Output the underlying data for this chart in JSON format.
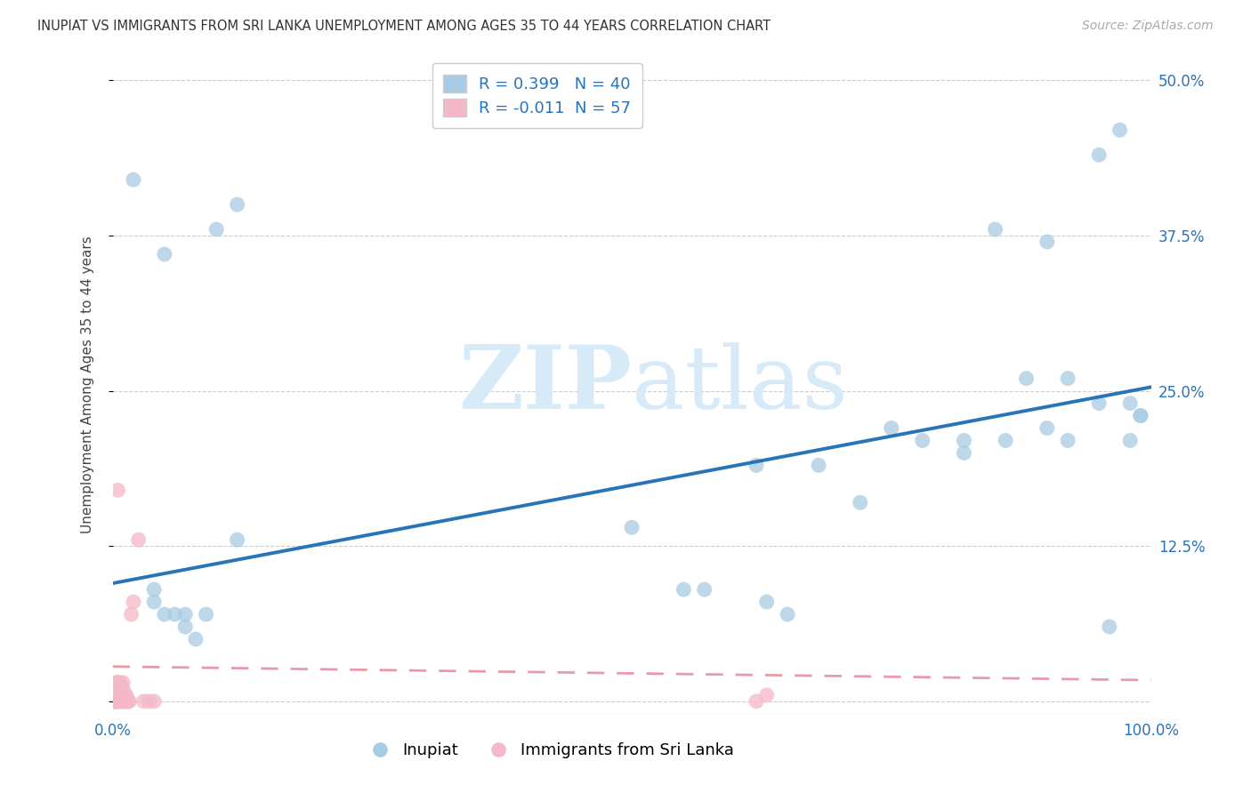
{
  "title": "INUPIAT VS IMMIGRANTS FROM SRI LANKA UNEMPLOYMENT AMONG AGES 35 TO 44 YEARS CORRELATION CHART",
  "source": "Source: ZipAtlas.com",
  "ylabel": "Unemployment Among Ages 35 to 44 years",
  "xlim": [
    0.0,
    1.0
  ],
  "ylim": [
    -0.01,
    0.52
  ],
  "xticks": [
    0.0,
    0.25,
    0.5,
    0.75,
    1.0
  ],
  "xtick_labels": [
    "0.0%",
    "",
    "",
    "",
    "100.0%"
  ],
  "yticks": [
    0.0,
    0.125,
    0.25,
    0.375,
    0.5
  ],
  "ytick_labels": [
    "",
    "12.5%",
    "25.0%",
    "37.5%",
    "50.0%"
  ],
  "inupiat_color": "#a8cce4",
  "sri_lanka_color": "#f5b8c8",
  "inupiat_R": "0.399",
  "inupiat_N": "40",
  "sri_lanka_R": "-0.011",
  "sri_lanka_N": "57",
  "inupiat_line_color": "#2874b8",
  "sri_lanka_line_color": "#e89aaa",
  "watermark_zip": "ZIP",
  "watermark_atlas": "atlas",
  "legend_label_inupiat": "Inupiat",
  "legend_label_srilanka": "Immigrants from Sri Lanka",
  "text_color": "#2874b8",
  "inupiat_x": [
    0.02,
    0.05,
    0.1,
    0.12,
    0.04,
    0.04,
    0.05,
    0.06,
    0.07,
    0.07,
    0.08,
    0.09,
    0.12,
    0.5,
    0.55,
    0.57,
    0.62,
    0.63,
    0.65,
    0.68,
    0.72,
    0.75,
    0.78,
    0.82,
    0.82,
    0.85,
    0.86,
    0.88,
    0.9,
    0.9,
    0.92,
    0.92,
    0.95,
    0.95,
    0.96,
    0.97,
    0.98,
    0.98,
    0.99,
    0.99
  ],
  "inupiat_y": [
    0.42,
    0.36,
    0.38,
    0.4,
    0.09,
    0.08,
    0.07,
    0.07,
    0.06,
    0.07,
    0.05,
    0.07,
    0.13,
    0.14,
    0.09,
    0.09,
    0.19,
    0.08,
    0.07,
    0.19,
    0.16,
    0.22,
    0.21,
    0.21,
    0.2,
    0.38,
    0.21,
    0.26,
    0.37,
    0.22,
    0.26,
    0.21,
    0.44,
    0.24,
    0.06,
    0.46,
    0.24,
    0.21,
    0.23,
    0.23
  ],
  "sri_lanka_x": [
    0.001,
    0.001,
    0.002,
    0.002,
    0.002,
    0.003,
    0.003,
    0.003,
    0.003,
    0.004,
    0.004,
    0.004,
    0.004,
    0.005,
    0.005,
    0.005,
    0.005,
    0.005,
    0.006,
    0.006,
    0.006,
    0.006,
    0.007,
    0.007,
    0.007,
    0.007,
    0.008,
    0.008,
    0.008,
    0.009,
    0.009,
    0.01,
    0.01,
    0.01,
    0.01,
    0.011,
    0.011,
    0.012,
    0.012,
    0.013,
    0.013,
    0.014,
    0.015,
    0.016,
    0.018,
    0.02,
    0.025,
    0.03,
    0.035,
    0.04,
    0.001,
    0.001,
    0.001,
    0.002,
    0.003,
    0.62,
    0.63
  ],
  "sri_lanka_y": [
    0.0,
    0.005,
    0.0,
    0.005,
    0.01,
    0.0,
    0.005,
    0.01,
    0.015,
    0.0,
    0.005,
    0.01,
    0.015,
    0.0,
    0.005,
    0.01,
    0.015,
    0.17,
    0.0,
    0.005,
    0.01,
    0.015,
    0.0,
    0.005,
    0.01,
    0.015,
    0.0,
    0.005,
    0.01,
    0.0,
    0.005,
    0.0,
    0.005,
    0.01,
    0.015,
    0.0,
    0.005,
    0.0,
    0.005,
    0.0,
    0.005,
    0.0,
    0.0,
    0.0,
    0.07,
    0.08,
    0.13,
    0.0,
    0.0,
    0.0,
    0.0,
    0.0,
    0.0,
    0.0,
    0.0,
    0.0,
    0.005
  ],
  "inupiat_line_x": [
    0.0,
    1.0
  ],
  "inupiat_line_y": [
    0.095,
    0.253
  ],
  "sri_lanka_line_x": [
    0.0,
    1.0
  ],
  "sri_lanka_line_y": [
    0.028,
    0.017
  ]
}
